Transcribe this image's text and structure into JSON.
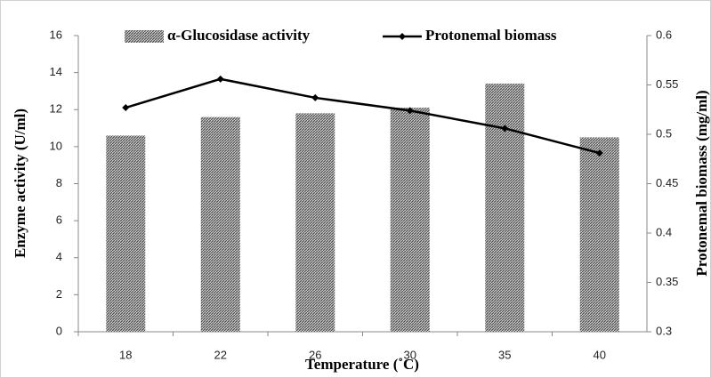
{
  "chart_data": {
    "type": "combo",
    "x_label": "Temperature (˚C)",
    "y_label": "Enzyme activity  (U/ml)",
    "y2_label": "Protonemal biomass (mg/ml)",
    "categories": [
      "18",
      "22",
      "26",
      "30",
      "35",
      "40"
    ],
    "series": [
      {
        "name": "α-Glucosidase activity",
        "type": "bar",
        "color": "#4d4d4d",
        "values": [
          10.6,
          11.6,
          11.8,
          12.1,
          13.4,
          10.5
        ]
      },
      {
        "name": "Protonemal biomass",
        "type": "line",
        "axis": "y2",
        "color": "#000000",
        "values": [
          0.527,
          0.556,
          0.537,
          0.524,
          0.506,
          0.481
        ]
      }
    ],
    "ylim": [
      0,
      16
    ],
    "yticks": [
      0,
      2,
      4,
      6,
      8,
      10,
      12,
      14,
      16
    ],
    "y2lim": [
      0.3,
      0.6
    ],
    "y2ticks": [
      0.3,
      0.35,
      0.4,
      0.45,
      0.5,
      0.55,
      0.6
    ],
    "legend": "top",
    "grid": false
  }
}
